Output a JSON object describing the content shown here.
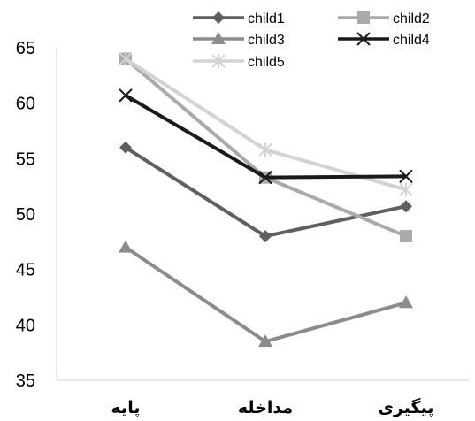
{
  "chart_data": {
    "type": "line",
    "categories": [
      "پایه",
      "مداخله",
      "پیگیری"
    ],
    "ylim": [
      35,
      65
    ],
    "yticks": [
      35,
      40,
      45,
      50,
      55,
      60,
      65
    ],
    "grid": false,
    "legend_position": "top",
    "series": [
      {
        "name": "child1",
        "values": [
          56,
          48,
          50.7
        ],
        "color": "#5f5f5f",
        "marker": "diamond"
      },
      {
        "name": "child2",
        "values": [
          64,
          53.3,
          48
        ],
        "color": "#aaaaaa",
        "marker": "square"
      },
      {
        "name": "child3",
        "values": [
          47,
          38.5,
          42
        ],
        "color": "#8c8c8c",
        "marker": "triangle"
      },
      {
        "name": "child4",
        "values": [
          60.7,
          53.3,
          53.4
        ],
        "color": "#1a1a1a",
        "marker": "x"
      },
      {
        "name": "child5",
        "values": [
          64,
          55.8,
          52.2
        ],
        "color": "#d3d3d3",
        "marker": "star"
      }
    ]
  }
}
